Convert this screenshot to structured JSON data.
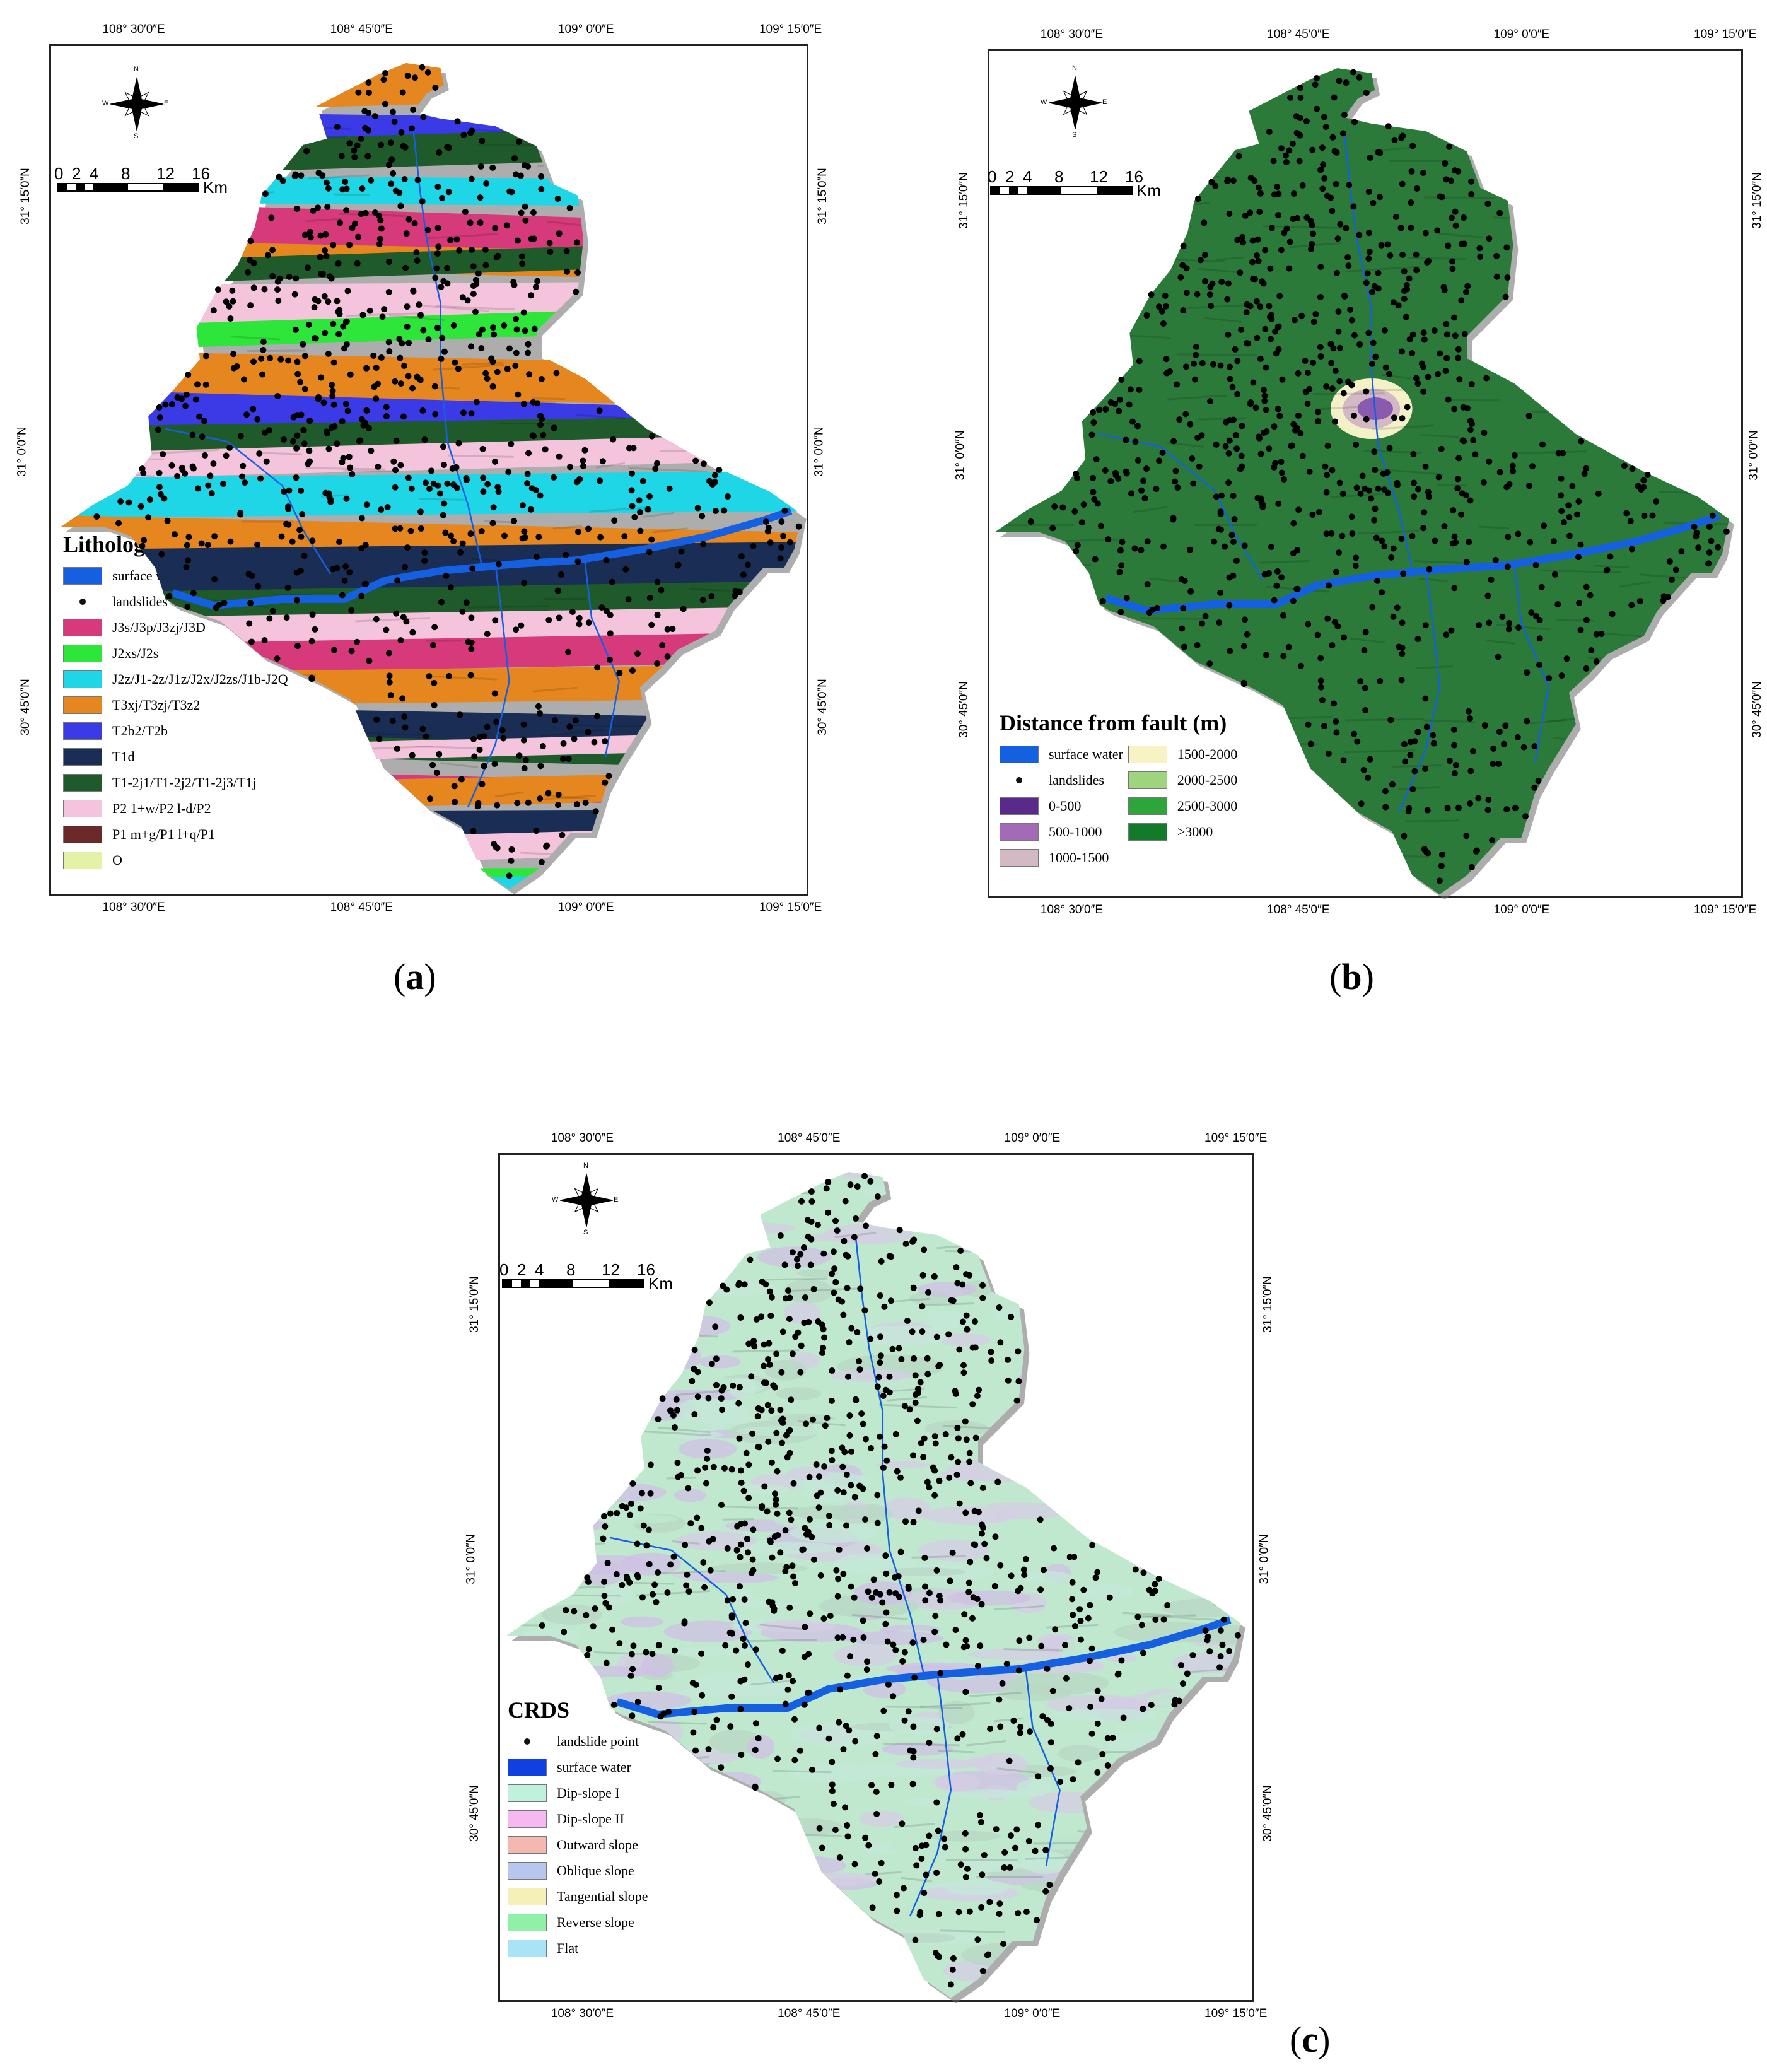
{
  "panels": {
    "a": {
      "caption": "a",
      "legend_title": "Lithology",
      "legend": [
        {
          "label": "surface water",
          "color": "#1560e0"
        },
        {
          "label": "landslides",
          "color": "#000000",
          "point": true
        },
        {
          "label": "J3s/J3p/J3zj/J3D",
          "color": "#d63a7a"
        },
        {
          "label": "J2xs/J2s",
          "color": "#2ee63a"
        },
        {
          "label": "J2z/J1-2z/J1z/J2x/J2zs/J1b-J2Q",
          "color": "#1fd6e6"
        },
        {
          "label": "T3xj/T3zj/T3z2",
          "color": "#e6861f"
        },
        {
          "label": "T2b2/T2b",
          "color": "#3a3ae6"
        },
        {
          "label": "T1d",
          "color": "#1a2e55"
        },
        {
          "label": "T1-2j1/T1-2j2/T1-2j3/T1j",
          "color": "#1f5a2a"
        },
        {
          "label": "P2 1+w/P2 l-d/P2",
          "color": "#f4c3dc"
        },
        {
          "label": "P1 m+g/P1 l+q/P1",
          "color": "#6b2a2a"
        },
        {
          "label": "O",
          "color": "#e3f2a6"
        }
      ],
      "map_colors": [
        "#2ee63a",
        "#1fd6e6",
        "#d63a7a",
        "#e6861f",
        "#3a3ae6",
        "#1a2e55",
        "#1f5a2a",
        "#f4c3dc"
      ]
    },
    "b": {
      "caption": "b",
      "legend_title": "Distance from fault (m)",
      "legend": [
        {
          "label": "surface water",
          "color": "#1560e0"
        },
        {
          "label": "1500-2000",
          "color": "#f7f3c4"
        },
        {
          "label": "landslides",
          "color": "#000000",
          "point": true
        },
        {
          "label": "2000-2500",
          "color": "#9ed47e"
        },
        {
          "label": "0-500",
          "color": "#5a2a8a"
        },
        {
          "label": "2500-3000",
          "color": "#2ea53a"
        },
        {
          "label": "500-1000",
          "color": "#a46ab8"
        },
        {
          "label": ">3000",
          "color": "#137a2a"
        },
        {
          "label": "1000-1500",
          "color": "#d3b9c3"
        }
      ],
      "map_color": "#2b7a3a"
    },
    "c": {
      "caption": "c",
      "legend_title": "CRDS",
      "legend": [
        {
          "label": "landslide point",
          "color": "#000000",
          "point": true
        },
        {
          "label": "surface water",
          "color": "#1040e0"
        },
        {
          "label": "Dip-slope I",
          "color": "#bff2dc"
        },
        {
          "label": "Dip-slope II",
          "color": "#f5b8f0"
        },
        {
          "label": "Outward slope",
          "color": "#f5b8b0"
        },
        {
          "label": "Oblique slope",
          "color": "#b8c6ef"
        },
        {
          "label": "Tangential slope",
          "color": "#f5f0b8"
        },
        {
          "label": "Reverse slope",
          "color": "#8ff0a8"
        },
        {
          "label": "Flat",
          "color": "#a8e4f5"
        }
      ],
      "map_colors": [
        "#bfe8cf",
        "#cfc0e4",
        "#b8d8c4",
        "#d6cde4",
        "#c4e8d8"
      ]
    }
  },
  "axes": {
    "lon_labels": [
      "108° 30′0″E",
      "108° 45′0″E",
      "109° 0′0″E",
      "109° 15′0″E"
    ],
    "lat_labels": [
      "31° 15′0″N",
      "31° 0′0″N",
      "30° 45′0″N"
    ]
  },
  "scale_bar": {
    "ticks": [
      "0",
      "2",
      "4",
      "8",
      "12",
      "16"
    ],
    "unit": "Km"
  },
  "compass": {
    "n": "N",
    "s": "S",
    "e": "E",
    "w": "W"
  },
  "water_color": "#1560e0",
  "landslide_count": 820
}
